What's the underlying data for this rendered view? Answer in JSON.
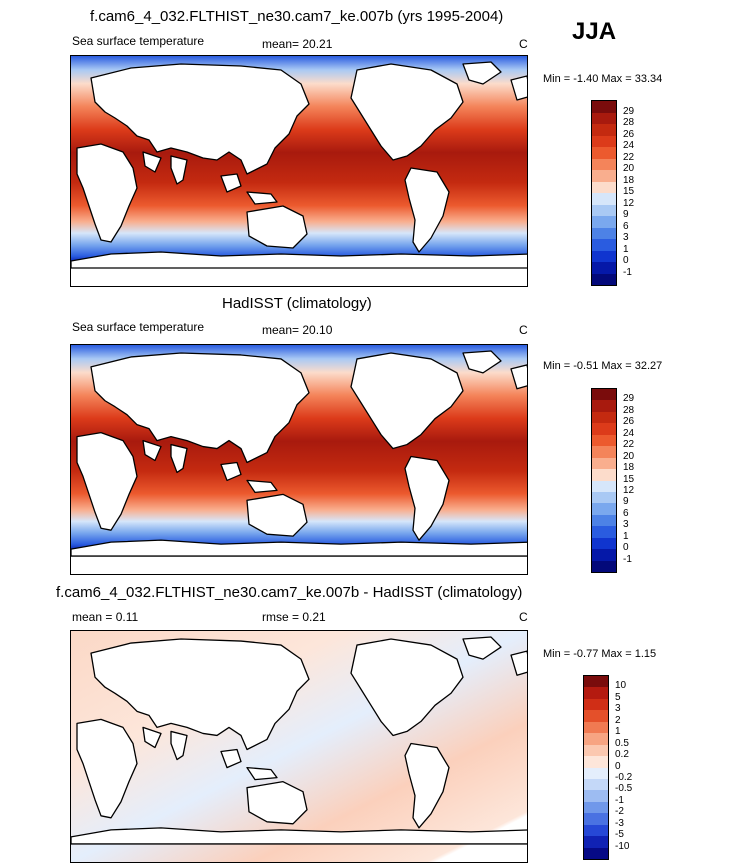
{
  "season": "JJA",
  "panels": [
    {
      "title": "f.cam6_4_032.FLTHIST_ne30.cam7_ke.007b (yrs 1995-2004)",
      "left_label": "Sea surface temperature",
      "center_label": "mean=  20.21",
      "units": "C",
      "minmax": "Min =  -1.40 Max =  33.34",
      "colorbar": {
        "labels": [
          "29",
          "28",
          "26",
          "24",
          "22",
          "20",
          "18",
          "15",
          "12",
          "9",
          "6",
          "3",
          "1",
          "0",
          "-1"
        ],
        "colors": [
          "#7a0c0c",
          "#a81a0e",
          "#c42a10",
          "#dc3b1a",
          "#ec5a2e",
          "#f4845a",
          "#f9ae8e",
          "#fcdccb",
          "#d6e6fa",
          "#a9c9f4",
          "#7aa8ee",
          "#4d82e6",
          "#2a5ce0",
          "#1035cf",
          "#0518a8",
          "#03097a"
        ]
      }
    },
    {
      "title": "HadISST (climatology)",
      "left_label": "Sea surface temperature",
      "center_label": "mean=  20.10",
      "units": "C",
      "minmax": "Min =  -0.51 Max =  32.27",
      "colorbar": {
        "labels": [
          "29",
          "28",
          "26",
          "24",
          "22",
          "20",
          "18",
          "15",
          "12",
          "9",
          "6",
          "3",
          "1",
          "0",
          "-1"
        ],
        "colors": [
          "#7a0c0c",
          "#a81a0e",
          "#c42a10",
          "#dc3b1a",
          "#ec5a2e",
          "#f4845a",
          "#f9ae8e",
          "#fcdccb",
          "#d6e6fa",
          "#a9c9f4",
          "#7aa8ee",
          "#4d82e6",
          "#2a5ce0",
          "#1035cf",
          "#0518a8",
          "#03097a"
        ]
      }
    },
    {
      "title": "f.cam6_4_032.FLTHIST_ne30.cam7_ke.007b - HadISST (climatology)",
      "left_label": "mean =   0.11",
      "center_label": "rmse =   0.21",
      "units": "C",
      "minmax": "Min =  -0.77 Max =    1.15",
      "colorbar": {
        "labels": [
          "10",
          "5",
          "3",
          "2",
          "1",
          "0.5",
          "0.2",
          "0",
          "-0.2",
          "-0.5",
          "-1",
          "-2",
          "-3",
          "-5",
          "-10"
        ],
        "colors": [
          "#7a0c0c",
          "#b41a10",
          "#d02e16",
          "#e4502a",
          "#f07a52",
          "#f7a482",
          "#fbc8b0",
          "#fde6da",
          "#e4eefc",
          "#c4d8f8",
          "#9dbcf2",
          "#7098ea",
          "#4a72e2",
          "#2648d6",
          "#1022b4",
          "#060a86"
        ]
      }
    }
  ]
}
